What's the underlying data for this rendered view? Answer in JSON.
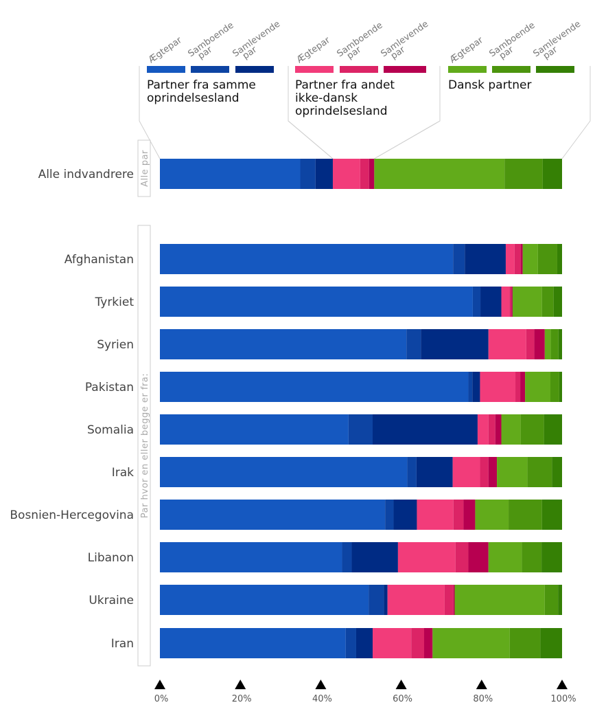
{
  "chart_data": {
    "type": "bar",
    "orientation": "horizontal",
    "stacked": true,
    "legend_groups": [
      {
        "label": "Partner fra samme oprindelsesland",
        "label_lines": [
          "Partner fra samme",
          "oprindelsesland"
        ]
      },
      {
        "label": "Partner fra andet ikke-dansk oprindelsesland",
        "label_lines": [
          "Partner fra andet",
          "ikke-dansk",
          "oprindelsesland"
        ]
      },
      {
        "label": "Dansk partner",
        "label_lines": [
          "Dansk partner"
        ]
      }
    ],
    "sub_labels": [
      {
        "lines": [
          "Ægtepar"
        ]
      },
      {
        "lines": [
          "Samboende",
          "par"
        ]
      },
      {
        "lines": [
          "Samlevende",
          "par"
        ]
      }
    ],
    "series": [
      {
        "group": 0,
        "sub": 0,
        "color": "#1558c0"
      },
      {
        "group": 0,
        "sub": 1,
        "color": "#0d44a3"
      },
      {
        "group": 0,
        "sub": 2,
        "color": "#002b84"
      },
      {
        "group": 1,
        "sub": 0,
        "color": "#f23c7a"
      },
      {
        "group": 1,
        "sub": 1,
        "color": "#dc2466"
      },
      {
        "group": 1,
        "sub": 2,
        "color": "#b70050"
      },
      {
        "group": 2,
        "sub": 0,
        "color": "#62ab1b"
      },
      {
        "group": 2,
        "sub": 1,
        "color": "#4c950e"
      },
      {
        "group": 2,
        "sub": 2,
        "color": "#358005"
      }
    ],
    "panels": [
      {
        "side_label": "Alle par",
        "rows": [
          {
            "category": "Alle indvandrere",
            "values": [
              34.9,
              3.8,
              4.3,
              6.8,
              2.2,
              1.3,
              32.4,
              9.5,
              4.8
            ]
          }
        ]
      },
      {
        "side_label": "Par hvor en eller begge er fra:",
        "rows": [
          {
            "category": "Afghanistan",
            "values": [
              72.9,
              2.9,
              10.2,
              2.2,
              1.5,
              0.5,
              3.8,
              4.8,
              1.2
            ]
          },
          {
            "category": "Tyrkiet",
            "values": [
              77.8,
              1.9,
              5.2,
              2.0,
              0.5,
              0.3,
              7.3,
              2.9,
              2.1
            ]
          },
          {
            "category": "Syrien",
            "values": [
              61.3,
              3.6,
              16.8,
              9.4,
              2.0,
              2.6,
              1.5,
              1.9,
              0.9
            ]
          },
          {
            "category": "Pakistan",
            "values": [
              76.7,
              1.0,
              1.9,
              8.8,
              1.2,
              1.2,
              6.3,
              2.2,
              0.7
            ]
          },
          {
            "category": "Somalia",
            "values": [
              46.9,
              6.0,
              26.1,
              2.7,
              1.7,
              1.5,
              4.8,
              5.8,
              4.5
            ]
          },
          {
            "category": "Irak",
            "values": [
              61.5,
              2.3,
              9.0,
              6.8,
              2.1,
              2.1,
              7.6,
              6.1,
              2.5
            ]
          },
          {
            "category": "Bosnien-Hercegovina",
            "values": [
              56.0,
              2.1,
              5.8,
              9.1,
              2.5,
              2.9,
              8.3,
              8.3,
              5.0
            ]
          },
          {
            "category": "Libanon",
            "values": [
              45.3,
              2.4,
              11.5,
              14.3,
              3.2,
              5.0,
              8.3,
              4.9,
              5.1
            ]
          },
          {
            "category": "Ukraine",
            "values": [
              51.9,
              3.8,
              0.9,
              14.2,
              2.2,
              0.3,
              22.4,
              3.3,
              1.0
            ]
          },
          {
            "category": "Iran",
            "values": [
              46.2,
              2.6,
              4.1,
              9.6,
              3.2,
              2.1,
              19.2,
              7.6,
              5.4
            ]
          }
        ]
      }
    ],
    "x_ticks": [
      "0%",
      "20%",
      "40%",
      "60%",
      "80%",
      "100%"
    ],
    "xlim": [
      0,
      100
    ]
  }
}
